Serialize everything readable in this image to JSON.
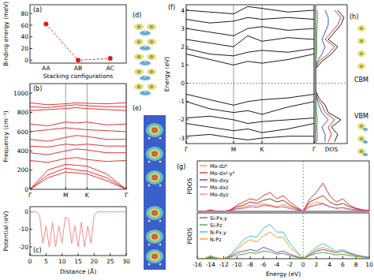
{
  "chart_data": [
    {
      "type": "line",
      "title": "(a)",
      "y_label": "Binding energy (meV)",
      "x_label": "Stacking configurations",
      "categories": [
        "AA",
        "AB",
        "AC"
      ],
      "ylim": [
        -5,
        95
      ],
      "yticks": [
        0,
        20,
        40,
        60,
        80
      ],
      "series": [
        {
          "values": [
            62,
            0,
            3
          ]
        }
      ],
      "color": "#e41a1c",
      "marker": "circle",
      "line_style": "dashed"
    },
    {
      "type": "line",
      "title": "(b)",
      "y_label": "Frequency (cm⁻¹)",
      "x": [
        0,
        0.5,
        1,
        1.3,
        1.6,
        2.15,
        2.7
      ],
      "xlim": [
        0,
        2.7
      ],
      "xticks": [
        {
          "value": 0,
          "label": "Γ"
        },
        {
          "value": 1,
          "label": "M"
        },
        {
          "value": 1.6,
          "label": "K"
        },
        {
          "value": 2.7,
          "label": "Γ"
        }
      ],
      "ylim": [
        0,
        1100
      ],
      "yticks": [
        0,
        200,
        400,
        600,
        800,
        1000
      ],
      "grid": true,
      "color": "#e41a1c",
      "series": [
        {
          "values": [
            0,
            120,
            180,
            170,
            160,
            90,
            0
          ]
        },
        {
          "values": [
            0,
            150,
            220,
            200,
            190,
            120,
            0
          ]
        },
        {
          "values": [
            0,
            200,
            260,
            250,
            240,
            160,
            0
          ]
        },
        {
          "values": [
            300,
            280,
            320,
            330,
            310,
            290,
            300
          ]
        },
        {
          "values": [
            380,
            360,
            400,
            420,
            410,
            380,
            380
          ]
        },
        {
          "values": [
            450,
            440,
            470,
            460,
            470,
            450,
            450
          ]
        },
        {
          "values": [
            520,
            500,
            540,
            560,
            550,
            520,
            520
          ]
        },
        {
          "values": [
            600,
            620,
            640,
            630,
            620,
            610,
            600
          ]
        },
        {
          "values": [
            680,
            660,
            700,
            690,
            700,
            670,
            680
          ]
        },
        {
          "values": [
            820,
            830,
            840,
            850,
            840,
            830,
            820
          ]
        },
        {
          "values": [
            860,
            850,
            870,
            880,
            870,
            860,
            860
          ]
        },
        {
          "values": [
            900,
            880,
            890,
            900,
            895,
            890,
            900
          ]
        }
      ]
    },
    {
      "type": "line",
      "title": "(c)",
      "y_label": "Potential (eV)",
      "x_label": "Distance (Å)",
      "x": [
        0,
        1,
        2,
        3,
        4,
        5,
        6,
        7,
        8,
        9,
        10,
        11,
        12,
        13,
        14,
        15,
        16,
        17,
        18,
        19,
        20,
        21,
        22,
        23,
        24,
        25,
        26,
        27,
        28,
        29,
        30
      ],
      "xlim": [
        0,
        30
      ],
      "xticks": [
        0,
        5,
        10,
        15,
        20,
        25,
        30
      ],
      "ylim": [
        -25,
        3
      ],
      "yticks": [
        -20,
        -10,
        0
      ],
      "color": "#f08080",
      "series": [
        {
          "values": [
            0,
            0,
            0,
            -2,
            -18,
            -8,
            -20,
            -6,
            -20,
            -8,
            -18,
            -3,
            -4,
            -18,
            -8,
            -20,
            -6,
            -20,
            -8,
            -18,
            -2,
            0,
            0,
            0,
            0,
            0,
            0,
            0,
            0,
            0,
            0
          ]
        }
      ]
    },
    {
      "type": "line",
      "title": "(f)",
      "y_label": "Energy (eV)",
      "x": [
        0,
        0.5,
        1,
        1.3,
        1.6,
        2.15,
        2.7
      ],
      "xlim": [
        0,
        2.7
      ],
      "xticks": [
        {
          "value": 0,
          "label": "Γ"
        },
        {
          "value": 1,
          "label": "M"
        },
        {
          "value": 1.6,
          "label": "K"
        },
        {
          "value": 2.7,
          "label": "Γ"
        }
      ],
      "ylim": [
        -3.3,
        4.3
      ],
      "yticks": [
        -3,
        -2,
        -1,
        0,
        1,
        2,
        3,
        4
      ],
      "grid": true,
      "color": "#000000",
      "hline": 0,
      "series": [
        {
          "values": [
            1.6,
            1.3,
            1.0,
            1.2,
            1.1,
            1.3,
            1.6
          ]
        },
        {
          "values": [
            1.9,
            1.6,
            1.5,
            1.7,
            1.8,
            1.7,
            1.9
          ]
        },
        {
          "values": [
            2.4,
            2.2,
            2.0,
            2.6,
            2.3,
            2.5,
            2.4
          ]
        },
        {
          "values": [
            3.0,
            2.8,
            2.6,
            3.0,
            3.1,
            2.9,
            3.0
          ]
        },
        {
          "values": [
            3.5,
            3.3,
            3.4,
            3.6,
            3.5,
            3.6,
            3.5
          ]
        },
        {
          "values": [
            4.0,
            3.9,
            3.8,
            4.2,
            4.1,
            3.9,
            4.0
          ]
        },
        {
          "values": [
            -0.6,
            -0.9,
            -1.2,
            -1.0,
            -0.9,
            -0.8,
            -0.6
          ]
        },
        {
          "values": [
            -1.0,
            -1.4,
            -1.6,
            -1.5,
            -1.7,
            -1.3,
            -1.0
          ]
        },
        {
          "values": [
            -1.9,
            -1.8,
            -2.0,
            -2.2,
            -2.1,
            -2.0,
            -1.9
          ]
        },
        {
          "values": [
            -2.2,
            -2.4,
            -2.6,
            -2.5,
            -2.7,
            -2.5,
            -2.2
          ]
        },
        {
          "values": [
            -2.9,
            -2.8,
            -3.0,
            -3.1,
            -3.0,
            -2.9,
            -2.9
          ]
        }
      ]
    },
    {
      "type": "line",
      "orientation": "horizontal",
      "x_label": "DOS",
      "tick_labels": false,
      "hline": 0,
      "y": [
        -3.2,
        -2.8,
        -2.4,
        -2.0,
        -1.6,
        -1.2,
        -0.8,
        -0.4,
        0,
        0.4,
        0.8,
        1.2,
        1.6,
        2.0,
        2.4,
        2.8,
        3.2,
        3.6,
        4.0
      ],
      "ylim": [
        -3.3,
        4.3
      ],
      "xlim": [
        0,
        10
      ],
      "series": [
        {
          "color": "#000000",
          "values": [
            6,
            7,
            5,
            8,
            4,
            3,
            1,
            0,
            0,
            0,
            0,
            2,
            5,
            7,
            4,
            6,
            8,
            9,
            7
          ]
        },
        {
          "color": "#e41a1c",
          "values": [
            4,
            5,
            4,
            6,
            3,
            2,
            0.5,
            0,
            0,
            0,
            0,
            1,
            4,
            6,
            3,
            5,
            7,
            8,
            6
          ]
        },
        {
          "color": "#1f3fbf",
          "values": [
            3,
            3,
            2,
            4,
            2,
            1,
            0.3,
            0,
            0,
            0,
            0,
            0.5,
            2,
            3,
            2,
            3,
            4,
            4,
            3
          ]
        },
        {
          "color": "#2ca02c",
          "values": [
            0.5,
            0.6,
            0.4,
            0.6,
            0.3,
            0.2,
            0.1,
            0,
            0,
            0,
            0,
            0.1,
            0.3,
            0.4,
            0.3,
            0.4,
            0.5,
            0.6,
            0.5
          ]
        }
      ]
    },
    {
      "type": "line",
      "title": "(g)",
      "y_label": "PDOS",
      "tick_labels": false,
      "legend": "upper left",
      "vline": 0,
      "x": [
        -16,
        -15,
        -14,
        -13,
        -12,
        -11,
        -10,
        -9,
        -8,
        -7,
        -6,
        -5,
        -4,
        -3,
        -2,
        -1,
        0,
        1,
        2,
        3,
        4,
        5,
        6,
        7,
        8,
        9,
        10
      ],
      "xlim": [
        -16,
        10
      ],
      "ylim": [
        0,
        16
      ],
      "series": [
        {
          "name": "Mo-dz²",
          "color": "#ff8c00",
          "values": [
            0,
            0,
            0.2,
            0,
            0,
            0.3,
            1,
            1.5,
            2,
            1.8,
            2.5,
            2,
            1.5,
            2.2,
            1.5,
            0.8,
            0,
            2,
            3,
            2.5,
            1.5,
            1,
            1.2,
            0.8,
            0.5,
            0.3,
            0.2
          ]
        },
        {
          "name": "Mo-dx²-y²",
          "color": "#e41a1c",
          "values": [
            0,
            0,
            0.5,
            0,
            0,
            0.5,
            2,
            3,
            4,
            3.5,
            5,
            6,
            4,
            5,
            3,
            1.5,
            0,
            4,
            6,
            9,
            5,
            3,
            4,
            2,
            1,
            0.5,
            0.3
          ]
        },
        {
          "name": "Mo-dxy",
          "color": "#8b1a1a",
          "values": [
            0,
            0,
            0.3,
            0,
            0,
            0.4,
            1.5,
            2,
            3,
            2.5,
            3.5,
            4,
            3,
            3.5,
            2,
            1,
            0,
            3,
            4,
            5,
            3,
            2,
            2.5,
            1.5,
            0.8,
            0.4,
            0.2
          ]
        },
        {
          "name": "Mo-dxz",
          "color": "#6a5acd",
          "values": [
            0,
            0,
            0.1,
            0,
            0,
            0.2,
            0.8,
            1,
            1.5,
            1.2,
            2,
            1.8,
            1.2,
            1.5,
            1,
            0.5,
            0,
            1.5,
            2,
            2.5,
            1.5,
            1,
            1.2,
            0.7,
            0.4,
            0.2,
            0.1
          ]
        },
        {
          "name": "Mo-dyz",
          "color": "#ff69b4",
          "values": [
            0,
            0,
            0.1,
            0,
            0,
            0.2,
            0.7,
            1,
            1.4,
            1.3,
            1.8,
            1.7,
            1.3,
            1.4,
            0.9,
            0.5,
            0,
            1.4,
            2.1,
            2.3,
            1.4,
            1,
            1.1,
            0.6,
            0.4,
            0.2,
            0.1
          ]
        }
      ]
    },
    {
      "type": "line",
      "y_label": "PDOS",
      "x_label": "Energy (eV)",
      "tick_labels": "x",
      "legend": "upper left",
      "vline": 0,
      "x": [
        -16,
        -15,
        -14,
        -13,
        -12,
        -11,
        -10,
        -9,
        -8,
        -7,
        -6,
        -5,
        -4,
        -3,
        -2,
        -1,
        0,
        1,
        2,
        3,
        4,
        5,
        6,
        7,
        8,
        9,
        10
      ],
      "xlim": [
        -16,
        10
      ],
      "xticks": [
        -16,
        -14,
        -12,
        -10,
        -8,
        -6,
        -4,
        -2,
        0,
        2,
        4,
        6,
        8,
        10
      ],
      "ylim": [
        0,
        6
      ],
      "series": [
        {
          "name": "Si-Px,y",
          "color": "#7b2fbe",
          "values": [
            0,
            0,
            0.2,
            0,
            0,
            0.3,
            0.8,
            1,
            1.2,
            1,
            1.5,
            1.2,
            0.8,
            1,
            0.6,
            0.3,
            0,
            0.5,
            1,
            1.2,
            1,
            0.8,
            1,
            0.7,
            0.5,
            0.3,
            0.2
          ]
        },
        {
          "name": "Si-Pz",
          "color": "#2ca02c",
          "values": [
            0,
            0,
            0.1,
            0,
            0,
            0.2,
            0.5,
            0.6,
            0.8,
            0.7,
            1,
            0.9,
            0.6,
            0.7,
            0.4,
            0.2,
            0,
            0.4,
            0.7,
            0.8,
            0.7,
            0.5,
            0.6,
            0.4,
            0.3,
            0.2,
            0.1
          ]
        },
        {
          "name": "N-Px,y",
          "color": "#17becf",
          "values": [
            0,
            0,
            0.4,
            0.1,
            0,
            0.5,
            1.5,
            2.5,
            3,
            2.8,
            4,
            4.5,
            3.5,
            3.5,
            2,
            1,
            0,
            0.8,
            1.5,
            2,
            1.5,
            1,
            1.2,
            0.8,
            0.5,
            0.3,
            0.2
          ]
        },
        {
          "name": "N-Pz",
          "color": "#ff8c00",
          "values": [
            0,
            0,
            0.3,
            0.1,
            0,
            0.4,
            1.2,
            2,
            2.5,
            2.2,
            3,
            3.5,
            2.8,
            2.8,
            1.5,
            0.8,
            0,
            0.6,
            1.2,
            1.5,
            1.2,
            0.8,
            1,
            0.6,
            0.4,
            0.2,
            0.1
          ]
        }
      ]
    }
  ],
  "images": [
    {
      "label": "(d)"
    },
    {
      "label": "(e)"
    },
    {
      "label": "(h)",
      "texts": [
        "CBM",
        "VBM"
      ]
    }
  ]
}
